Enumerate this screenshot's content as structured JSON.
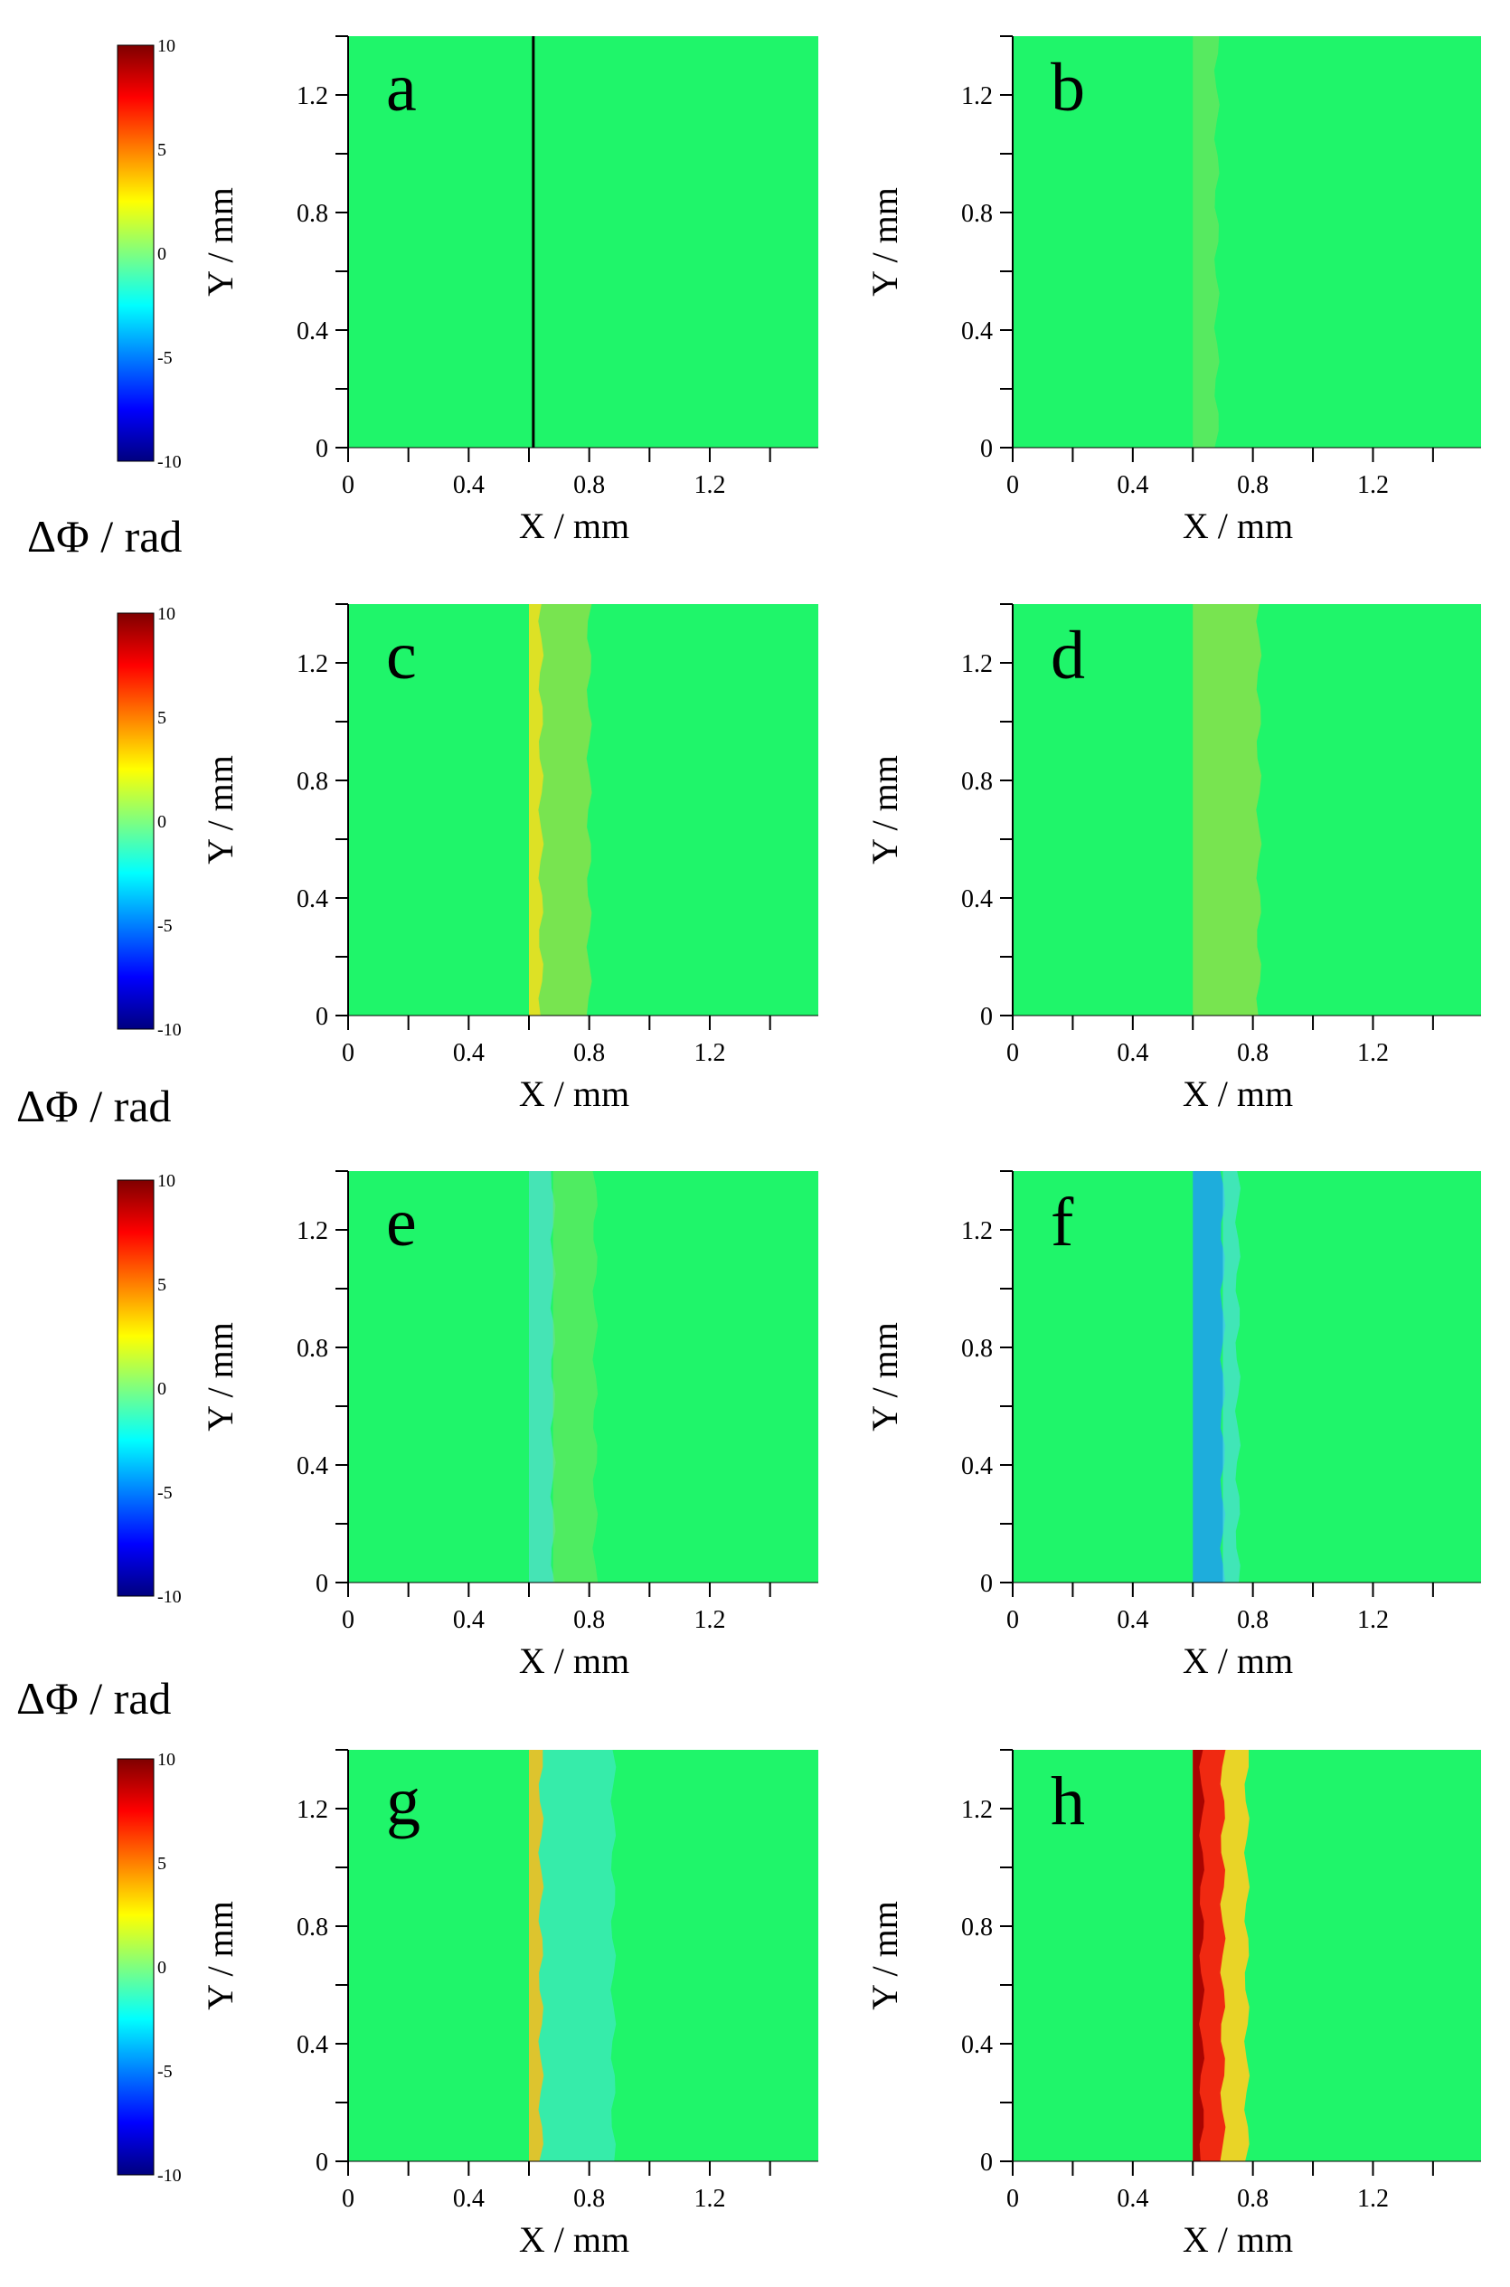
{
  "chart_data": {
    "type": "heatmap",
    "description_visible": false,
    "colorbar": {
      "ticks": [
        "10",
        "5",
        "0",
        "-5",
        "-10"
      ],
      "range": [
        -10,
        10
      ],
      "colormap": [
        "#00007f",
        "#0000ff",
        "#007fff",
        "#00ffff",
        "#7fff7f",
        "#ffff00",
        "#ff7f00",
        "#ff0000",
        "#7f0000"
      ],
      "label": "ΔΦ / rad"
    },
    "xlabel": "X / mm",
    "ylabel": "Y / mm",
    "xticks": [
      "0",
      "0.4",
      "0.8",
      "1.2"
    ],
    "yticks": [
      "0",
      "0.4",
      "0.8",
      "1.2"
    ],
    "xlim": [
      0,
      1.56
    ],
    "ylim": [
      0,
      1.4
    ],
    "background_color": "#1ff56a",
    "panels": [
      {
        "letter": "a",
        "edge_x": 0.62,
        "features": [
          {
            "x0": 0.61,
            "x1": 0.63,
            "color": "#000000",
            "opacity": 1.0,
            "kind": "line"
          }
        ]
      },
      {
        "letter": "b",
        "edge_x": 0.6,
        "features": [
          {
            "x0": 0.6,
            "x1": 0.68,
            "color": "#6fe65c",
            "opacity": 0.7,
            "kind": "band"
          }
        ]
      },
      {
        "letter": "c",
        "edge_x": 0.6,
        "features": [
          {
            "x0": 0.6,
            "x1": 0.8,
            "color": "#8fe04a",
            "opacity": 0.8,
            "kind": "band"
          },
          {
            "x0": 0.6,
            "x1": 0.64,
            "color": "#e8e020",
            "opacity": 0.9,
            "kind": "band"
          }
        ]
      },
      {
        "letter": "d",
        "edge_x": 0.6,
        "features": [
          {
            "x0": 0.6,
            "x1": 0.82,
            "color": "#8fe04a",
            "opacity": 0.8,
            "kind": "band"
          }
        ]
      },
      {
        "letter": "e",
        "edge_x": 0.6,
        "features": [
          {
            "x0": 0.6,
            "x1": 0.68,
            "color": "#4fe0c8",
            "opacity": 0.8,
            "kind": "band"
          },
          {
            "x0": 0.68,
            "x1": 0.82,
            "color": "#6fe65c",
            "opacity": 0.6,
            "kind": "band"
          }
        ]
      },
      {
        "letter": "f",
        "edge_x": 0.6,
        "features": [
          {
            "x0": 0.6,
            "x1": 0.7,
            "color": "#1fa0f0",
            "opacity": 0.85,
            "kind": "band"
          },
          {
            "x0": 0.7,
            "x1": 0.75,
            "color": "#4fe0d8",
            "opacity": 0.7,
            "kind": "band"
          }
        ]
      },
      {
        "letter": "g",
        "edge_x": 0.6,
        "features": [
          {
            "x0": 0.6,
            "x1": 0.88,
            "color": "#3fe8c0",
            "opacity": 0.75,
            "kind": "band"
          },
          {
            "x0": 0.6,
            "x1": 0.64,
            "color": "#f0c020",
            "opacity": 0.9,
            "kind": "band"
          }
        ]
      },
      {
        "letter": "h",
        "edge_x": 0.6,
        "features": [
          {
            "x0": 0.6,
            "x1": 0.78,
            "color": "#ffd020",
            "opacity": 0.9,
            "kind": "band"
          },
          {
            "x0": 0.6,
            "x1": 0.7,
            "color": "#f02010",
            "opacity": 0.95,
            "kind": "band"
          },
          {
            "x0": 0.6,
            "x1": 0.63,
            "color": "#a00000",
            "opacity": 0.9,
            "kind": "band"
          }
        ]
      }
    ]
  },
  "colorbar_label_rows": [
    "ΔΦ / rad",
    "ΔΦ / rad",
    "ΔΦ / rad"
  ]
}
